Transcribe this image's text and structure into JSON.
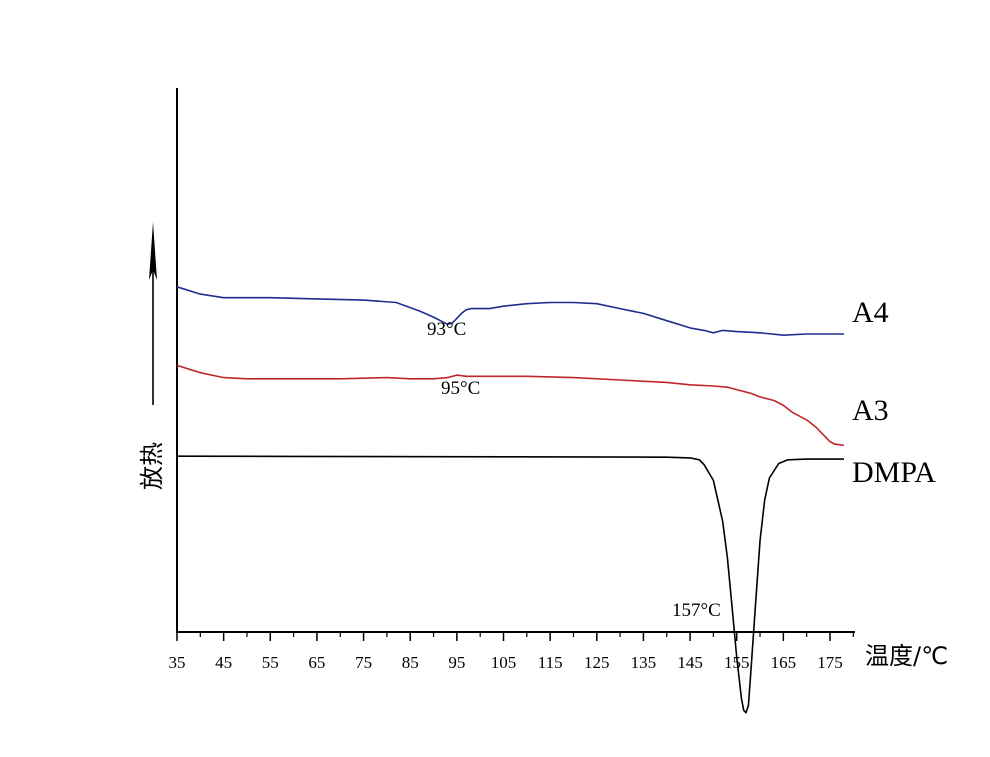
{
  "chart_data": {
    "type": "line",
    "xlabel": "温度/℃",
    "ylabel": "放热",
    "xlim": [
      35,
      178
    ],
    "ticks": [
      "35",
      "45",
      "55",
      "65",
      "75",
      "85",
      "95",
      "105",
      "115",
      "125",
      "135",
      "145",
      "155",
      "165",
      "175"
    ],
    "grid": false,
    "series": [
      {
        "name": "A4",
        "color": "#1f2d8f",
        "x": [
          35,
          40,
          45,
          55,
          65,
          75,
          82,
          87,
          90,
          92,
          93,
          94,
          95,
          96,
          97,
          98,
          100,
          102,
          105,
          110,
          115,
          120,
          125,
          130,
          135,
          140,
          145,
          148,
          150,
          152,
          155,
          160,
          165,
          170,
          175,
          178
        ],
        "y": [
          0.6,
          0.57,
          0.555,
          0.555,
          0.55,
          0.545,
          0.535,
          0.5,
          0.475,
          0.455,
          0.445,
          0.45,
          0.47,
          0.49,
          0.505,
          0.51,
          0.51,
          0.51,
          0.52,
          0.53,
          0.535,
          0.535,
          0.53,
          0.51,
          0.49,
          0.46,
          0.43,
          0.42,
          0.41,
          0.42,
          0.415,
          0.41,
          0.4,
          0.405,
          0.405,
          0.405
        ]
      },
      {
        "name": "A3",
        "color": "#c0272d",
        "x": [
          35,
          40,
          45,
          50,
          60,
          70,
          80,
          85,
          90,
          93,
          95,
          97,
          100,
          105,
          110,
          120,
          130,
          140,
          145,
          150,
          153,
          155,
          158,
          160,
          163,
          165,
          167,
          170,
          172,
          174,
          175,
          176,
          178
        ],
        "y": [
          0.275,
          0.245,
          0.225,
          0.22,
          0.22,
          0.22,
          0.225,
          0.22,
          0.22,
          0.225,
          0.235,
          0.23,
          0.23,
          0.23,
          0.23,
          0.225,
          0.215,
          0.205,
          0.195,
          0.19,
          0.185,
          0.175,
          0.16,
          0.145,
          0.13,
          0.11,
          0.08,
          0.05,
          0.02,
          -0.02,
          -0.04,
          -0.05,
          -0.055
        ]
      },
      {
        "name": "DMPA",
        "color": "#000000",
        "x": [
          35,
          60,
          90,
          120,
          140,
          145,
          147,
          148,
          150,
          152,
          153,
          154,
          155,
          156,
          156.5,
          157,
          157.5,
          158,
          159,
          160,
          161,
          162,
          164,
          166,
          170,
          178
        ],
        "y": [
          -0.1,
          -0.101,
          -0.102,
          -0.103,
          -0.104,
          -0.107,
          -0.115,
          -0.135,
          -0.2,
          -0.37,
          -0.52,
          -0.72,
          -0.93,
          -1.1,
          -1.15,
          -1.16,
          -1.13,
          -1.0,
          -0.72,
          -0.45,
          -0.28,
          -0.19,
          -0.13,
          -0.115,
          -0.112,
          -0.112
        ]
      }
    ],
    "annotations": [
      {
        "text": "93°C",
        "x": 93
      },
      {
        "text": "95°C",
        "x": 95
      },
      {
        "text": "157°C",
        "x": 157
      }
    ]
  }
}
